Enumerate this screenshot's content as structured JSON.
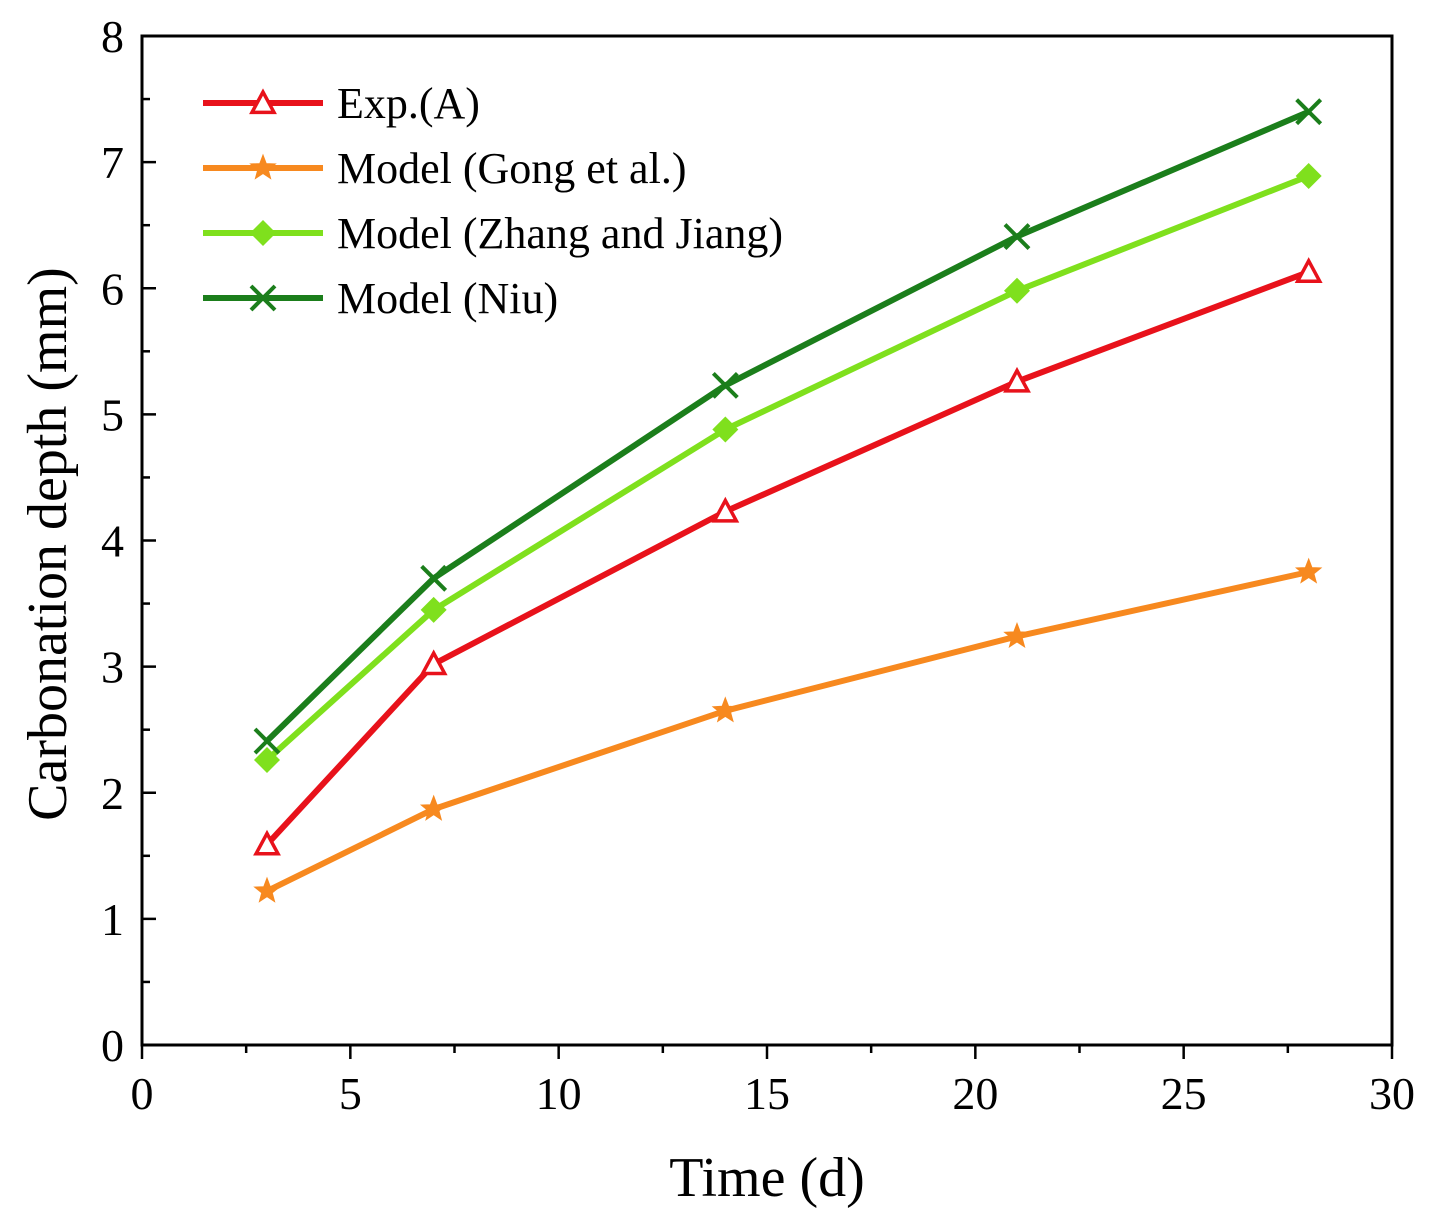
{
  "chart_data": {
    "type": "line",
    "title": "",
    "xlabel": "Time (d)",
    "ylabel": "Carbonation depth (mm)",
    "xlim": [
      0,
      30
    ],
    "ylim": [
      0,
      8
    ],
    "xticks": [
      0,
      5,
      10,
      15,
      20,
      25,
      30
    ],
    "yticks": [
      0,
      1,
      2,
      3,
      4,
      5,
      6,
      7,
      8
    ],
    "x": [
      3,
      7,
      14,
      21,
      28
    ],
    "legend_position": "top-left",
    "grid": false,
    "series": [
      {
        "name": "Exp.(A)",
        "color": "#e8121b",
        "marker": "triangle-open",
        "values": [
          1.59,
          3.02,
          4.23,
          5.26,
          6.13
        ]
      },
      {
        "name": "Model (Gong et al.)",
        "color": "#f7891f",
        "marker": "star",
        "values": [
          1.22,
          1.87,
          2.65,
          3.24,
          3.75
        ]
      },
      {
        "name": "Model (Zhang and Jiang)",
        "color": "#7fe01d",
        "marker": "diamond",
        "values": [
          2.26,
          3.45,
          4.88,
          5.98,
          6.89
        ]
      },
      {
        "name": "Model (Niu)",
        "color": "#1b7e1b",
        "marker": "x",
        "values": [
          2.41,
          3.7,
          5.23,
          6.41,
          7.4
        ]
      }
    ]
  }
}
